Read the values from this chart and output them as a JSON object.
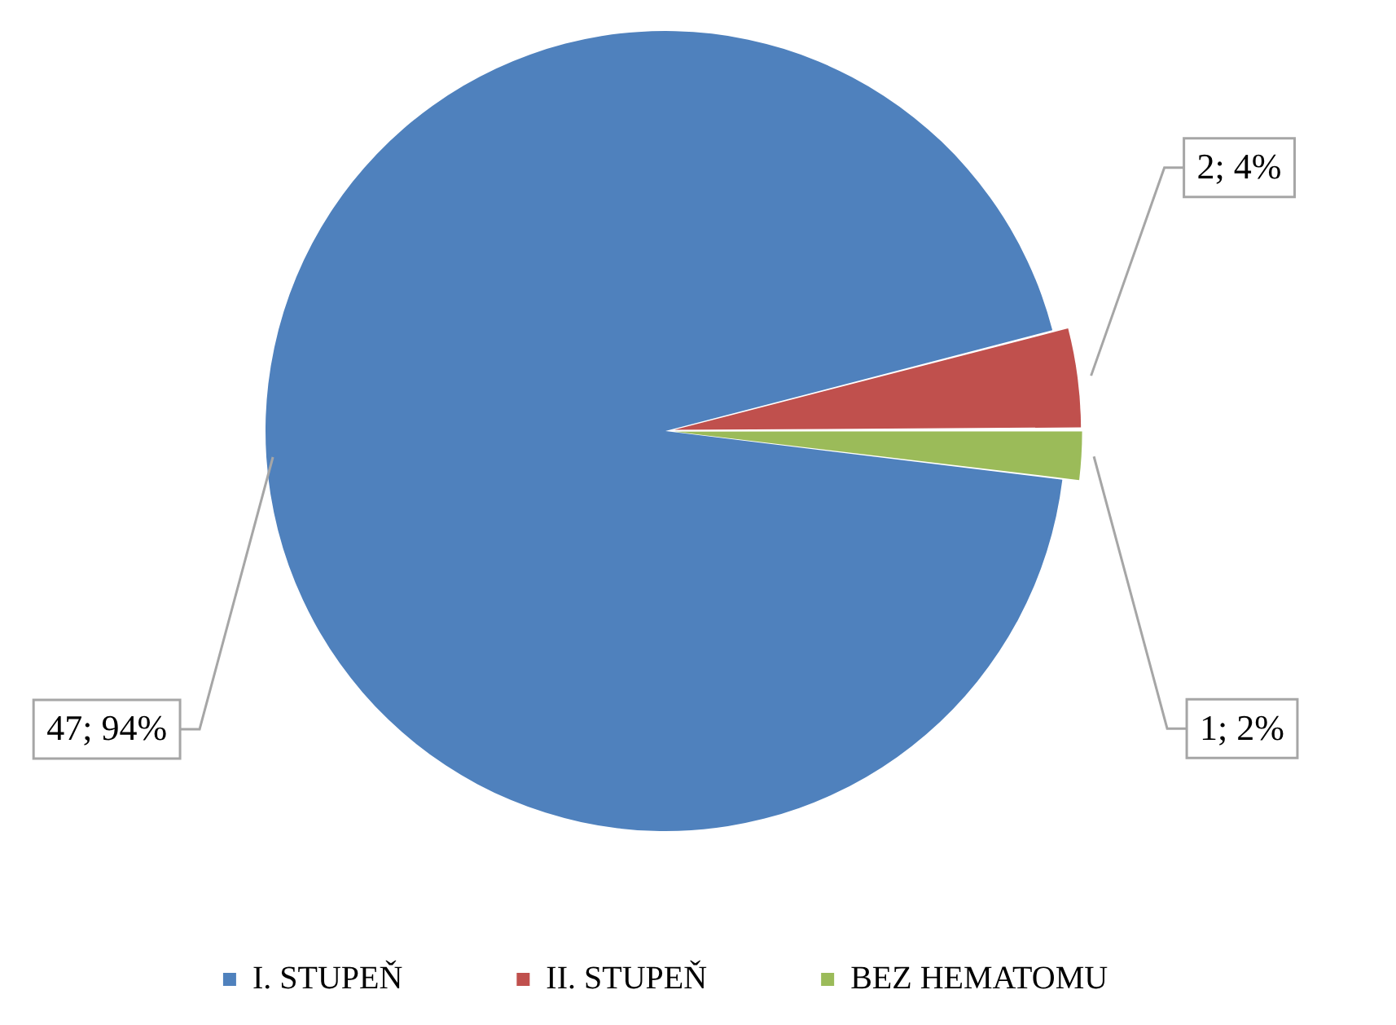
{
  "chart_data": {
    "type": "pie",
    "categories": [
      "I. STUPEŇ",
      "II. STUPEŇ",
      "BEZ HEMATOMU"
    ],
    "values": [
      47,
      2,
      1
    ],
    "value_labels": [
      "47; 94%",
      "2; 4%",
      "1; 2%"
    ],
    "colors": [
      "#4f81bd",
      "#c0504d",
      "#9bbb59"
    ],
    "legend": "bottom"
  }
}
